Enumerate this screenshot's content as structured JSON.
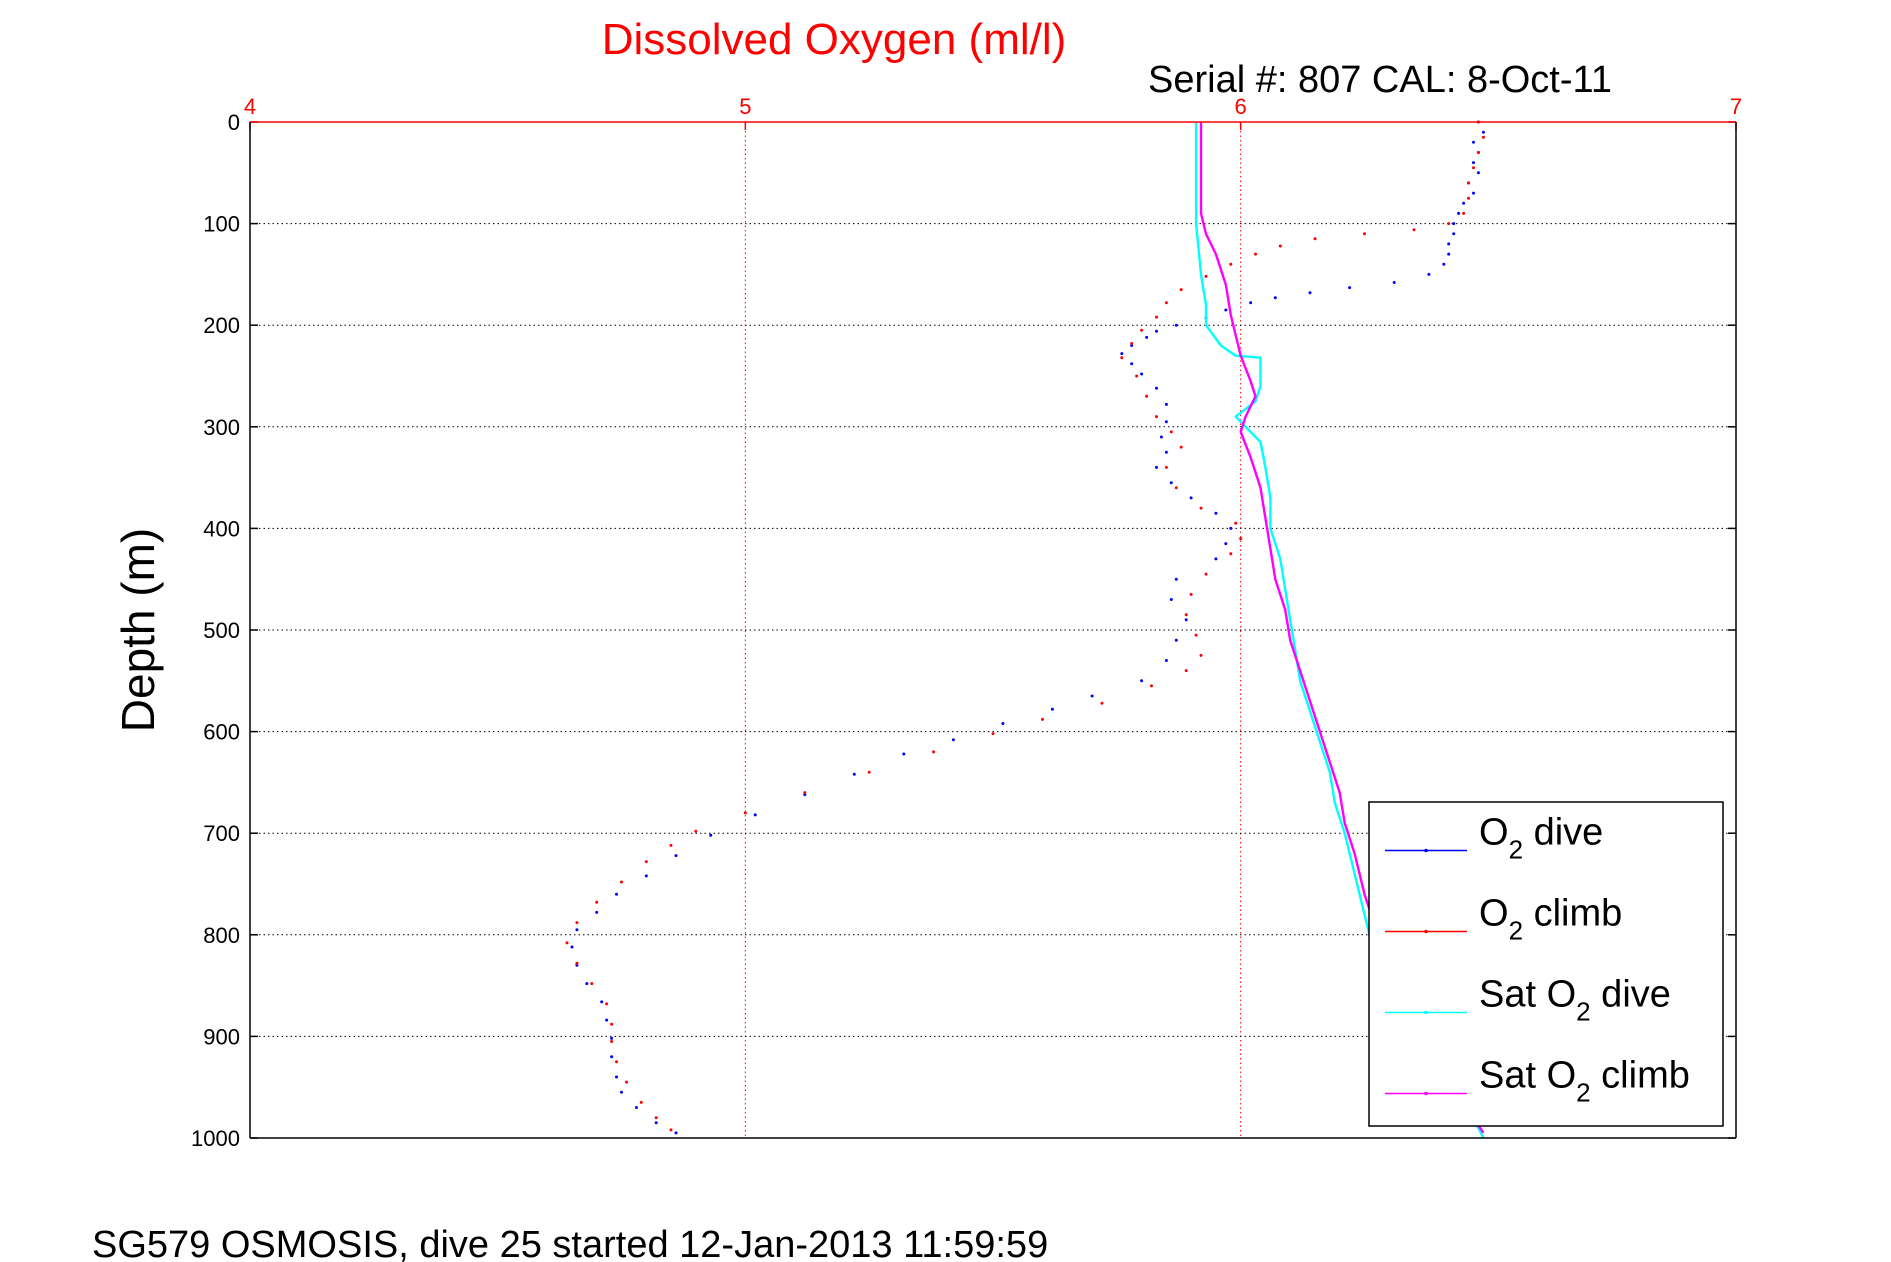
{
  "chart_data": {
    "type": "scatter",
    "title": "Dissolved Oxygen (ml/l)",
    "subtitle": "Serial #: 807  CAL: 8-Oct-11",
    "ylabel": "Depth (m)",
    "footer": "SG579 OSMOSIS, dive 25 started 12-Jan-2013 11:59:59",
    "xlim": [
      4,
      7
    ],
    "ylim": [
      0,
      1000
    ],
    "y_reversed": true,
    "x_axis_position": "top",
    "x_ticks": [
      "4",
      "5",
      "6",
      "7"
    ],
    "y_ticks": [
      "0",
      "100",
      "200",
      "300",
      "400",
      "500",
      "600",
      "700",
      "800",
      "900",
      "1000"
    ],
    "grid": true,
    "legend_position": "bottom-right",
    "colors": {
      "axis_top": "#ff0000",
      "grid_x": "#ff0000",
      "grid_y": "#000000"
    },
    "series": [
      {
        "name": "O2 dive",
        "legend": {
          "pre": "O",
          "sub": "2",
          "post": " dive"
        },
        "color": "#0000ff",
        "style": "points",
        "points": [
          [
            6.48,
            0
          ],
          [
            6.49,
            10
          ],
          [
            6.47,
            20
          ],
          [
            6.48,
            30
          ],
          [
            6.47,
            40
          ],
          [
            6.48,
            50
          ],
          [
            6.46,
            60
          ],
          [
            6.47,
            70
          ],
          [
            6.45,
            80
          ],
          [
            6.44,
            90
          ],
          [
            6.43,
            100
          ],
          [
            6.43,
            110
          ],
          [
            6.42,
            120
          ],
          [
            6.42,
            130
          ],
          [
            6.41,
            140
          ],
          [
            6.38,
            150
          ],
          [
            6.31,
            158
          ],
          [
            6.22,
            163
          ],
          [
            6.14,
            168
          ],
          [
            6.07,
            173
          ],
          [
            6.02,
            178
          ],
          [
            5.97,
            185
          ],
          [
            5.93,
            193
          ],
          [
            5.87,
            200
          ],
          [
            5.83,
            206
          ],
          [
            5.81,
            212
          ],
          [
            5.78,
            220
          ],
          [
            5.76,
            228
          ],
          [
            5.78,
            238
          ],
          [
            5.8,
            248
          ],
          [
            5.83,
            262
          ],
          [
            5.85,
            278
          ],
          [
            5.85,
            295
          ],
          [
            5.84,
            310
          ],
          [
            5.85,
            325
          ],
          [
            5.83,
            340
          ],
          [
            5.86,
            355
          ],
          [
            5.9,
            370
          ],
          [
            5.95,
            385
          ],
          [
            5.98,
            400
          ],
          [
            5.97,
            415
          ],
          [
            5.95,
            430
          ],
          [
            5.87,
            450
          ],
          [
            5.86,
            470
          ],
          [
            5.89,
            490
          ],
          [
            5.87,
            510
          ],
          [
            5.85,
            530
          ],
          [
            5.8,
            550
          ],
          [
            5.7,
            565
          ],
          [
            5.62,
            578
          ],
          [
            5.52,
            592
          ],
          [
            5.42,
            608
          ],
          [
            5.32,
            622
          ],
          [
            5.22,
            642
          ],
          [
            5.12,
            662
          ],
          [
            5.02,
            682
          ],
          [
            4.93,
            702
          ],
          [
            4.86,
            722
          ],
          [
            4.8,
            742
          ],
          [
            4.74,
            760
          ],
          [
            4.7,
            778
          ],
          [
            4.66,
            795
          ],
          [
            4.65,
            812
          ],
          [
            4.66,
            830
          ],
          [
            4.68,
            848
          ],
          [
            4.71,
            866
          ],
          [
            4.72,
            884
          ],
          [
            4.73,
            902
          ],
          [
            4.73,
            920
          ],
          [
            4.74,
            940
          ],
          [
            4.75,
            955
          ],
          [
            4.78,
            970
          ],
          [
            4.82,
            985
          ],
          [
            4.86,
            995
          ]
        ]
      },
      {
        "name": "O2 climb",
        "legend": {
          "pre": "O",
          "sub": "2",
          "post": " climb"
        },
        "color": "#ff0000",
        "style": "points",
        "points": [
          [
            6.48,
            0
          ],
          [
            6.49,
            15
          ],
          [
            6.48,
            30
          ],
          [
            6.47,
            45
          ],
          [
            6.46,
            60
          ],
          [
            6.46,
            75
          ],
          [
            6.45,
            90
          ],
          [
            6.42,
            100
          ],
          [
            6.35,
            106
          ],
          [
            6.25,
            110
          ],
          [
            6.15,
            115
          ],
          [
            6.08,
            122
          ],
          [
            6.03,
            130
          ],
          [
            5.98,
            140
          ],
          [
            5.93,
            152
          ],
          [
            5.88,
            165
          ],
          [
            5.85,
            178
          ],
          [
            5.83,
            192
          ],
          [
            5.8,
            205
          ],
          [
            5.78,
            218
          ],
          [
            5.76,
            232
          ],
          [
            5.79,
            250
          ],
          [
            5.81,
            270
          ],
          [
            5.83,
            290
          ],
          [
            5.86,
            305
          ],
          [
            5.88,
            320
          ],
          [
            5.85,
            340
          ],
          [
            5.87,
            360
          ],
          [
            5.92,
            380
          ],
          [
            5.99,
            395
          ],
          [
            6.0,
            410
          ],
          [
            5.98,
            425
          ],
          [
            5.93,
            445
          ],
          [
            5.9,
            465
          ],
          [
            5.89,
            485
          ],
          [
            5.91,
            505
          ],
          [
            5.92,
            525
          ],
          [
            5.89,
            540
          ],
          [
            5.82,
            555
          ],
          [
            5.72,
            572
          ],
          [
            5.6,
            588
          ],
          [
            5.5,
            602
          ],
          [
            5.38,
            620
          ],
          [
            5.25,
            640
          ],
          [
            5.12,
            660
          ],
          [
            5.0,
            680
          ],
          [
            4.9,
            698
          ],
          [
            4.85,
            712
          ],
          [
            4.8,
            728
          ],
          [
            4.75,
            748
          ],
          [
            4.7,
            768
          ],
          [
            4.66,
            788
          ],
          [
            4.64,
            808
          ],
          [
            4.66,
            828
          ],
          [
            4.69,
            848
          ],
          [
            4.72,
            868
          ],
          [
            4.73,
            888
          ],
          [
            4.73,
            905
          ],
          [
            4.74,
            925
          ],
          [
            4.76,
            945
          ],
          [
            4.79,
            965
          ],
          [
            4.82,
            980
          ],
          [
            4.85,
            992
          ]
        ]
      },
      {
        "name": "Sat O2 dive",
        "legend": {
          "pre": "Sat O",
          "sub": "2",
          "post": " dive"
        },
        "color": "#00ffff",
        "style": "line",
        "points": [
          [
            5.91,
            0
          ],
          [
            5.91,
            50
          ],
          [
            5.91,
            100
          ],
          [
            5.92,
            150
          ],
          [
            5.93,
            180
          ],
          [
            5.93,
            200
          ],
          [
            5.96,
            220
          ],
          [
            5.99,
            230
          ],
          [
            6.04,
            232
          ],
          [
            6.04,
            260
          ],
          [
            6.03,
            275
          ],
          [
            5.99,
            290
          ],
          [
            6.01,
            300
          ],
          [
            6.04,
            315
          ],
          [
            6.05,
            340
          ],
          [
            6.06,
            370
          ],
          [
            6.06,
            400
          ],
          [
            6.08,
            430
          ],
          [
            6.09,
            460
          ],
          [
            6.1,
            490
          ],
          [
            6.11,
            520
          ],
          [
            6.12,
            550
          ],
          [
            6.14,
            580
          ],
          [
            6.16,
            610
          ],
          [
            6.18,
            640
          ],
          [
            6.19,
            670
          ],
          [
            6.21,
            700
          ],
          [
            6.23,
            740
          ],
          [
            6.25,
            780
          ],
          [
            6.27,
            820
          ],
          [
            6.3,
            860
          ],
          [
            6.34,
            900
          ],
          [
            6.39,
            940
          ],
          [
            6.44,
            970
          ],
          [
            6.48,
            990
          ],
          [
            6.49,
            1000
          ]
        ]
      },
      {
        "name": "Sat O2 climb",
        "legend": {
          "pre": "Sat O",
          "sub": "2",
          "post": " climb"
        },
        "color": "#ff00ff",
        "style": "line",
        "points": [
          [
            5.92,
            0
          ],
          [
            5.92,
            50
          ],
          [
            5.92,
            90
          ],
          [
            5.93,
            110
          ],
          [
            5.95,
            130
          ],
          [
            5.97,
            160
          ],
          [
            5.98,
            190
          ],
          [
            5.99,
            210
          ],
          [
            6.0,
            230
          ],
          [
            6.02,
            255
          ],
          [
            6.03,
            270
          ],
          [
            6.01,
            290
          ],
          [
            6.0,
            305
          ],
          [
            6.02,
            330
          ],
          [
            6.04,
            360
          ],
          [
            6.05,
            390
          ],
          [
            6.06,
            420
          ],
          [
            6.07,
            450
          ],
          [
            6.09,
            480
          ],
          [
            6.1,
            510
          ],
          [
            6.12,
            540
          ],
          [
            6.14,
            570
          ],
          [
            6.16,
            600
          ],
          [
            6.18,
            630
          ],
          [
            6.2,
            660
          ],
          [
            6.21,
            690
          ],
          [
            6.23,
            720
          ],
          [
            6.25,
            760
          ],
          [
            6.27,
            790
          ],
          [
            6.3,
            830
          ],
          [
            6.34,
            870
          ],
          [
            6.38,
            910
          ],
          [
            6.43,
            950
          ],
          [
            6.47,
            980
          ],
          [
            6.49,
            995
          ]
        ]
      }
    ]
  }
}
